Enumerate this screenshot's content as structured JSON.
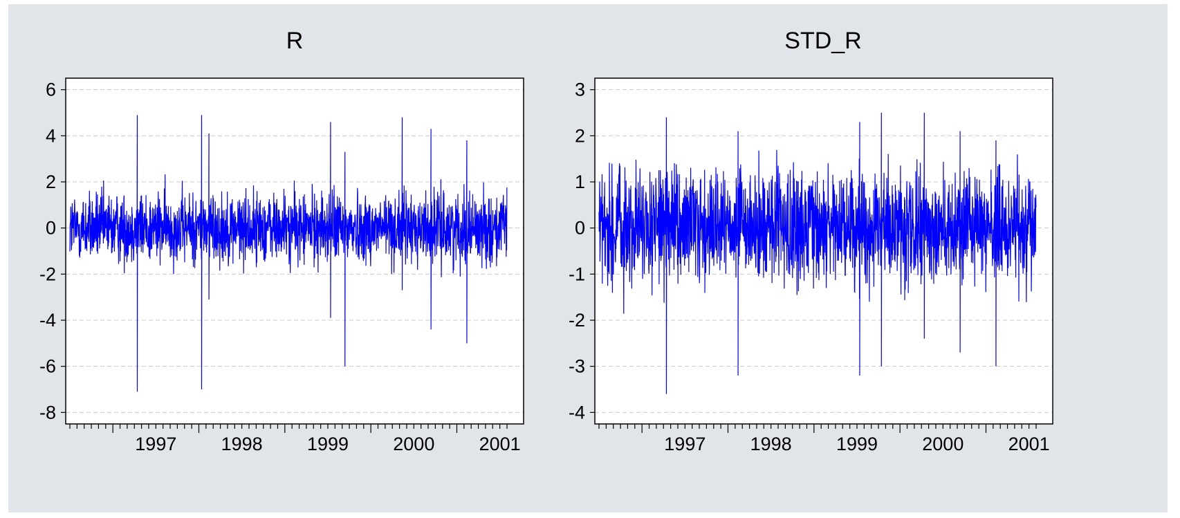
{
  "chart_data": [
    {
      "type": "line",
      "title": "R",
      "xlabel": "",
      "ylabel": "",
      "ylim": [
        -8.5,
        6.5
      ],
      "y_ticks": [
        "6",
        "4",
        "2",
        "0",
        "-2",
        "-4",
        "-6",
        "-8"
      ],
      "x_ticks": [
        "1997",
        "1998",
        "1999",
        "2000",
        "2001"
      ],
      "x_range": [
        "1996-07",
        "2001-08"
      ],
      "grid": "horizontal dashed",
      "series": [
        {
          "color": "#0000ff",
          "frequency": "daily",
          "spikes": [
            {
              "date": "1997-04",
              "high": 4.9,
              "low": -7.1
            },
            {
              "date": "1998-01",
              "high": 4.9,
              "low": -7.0
            },
            {
              "date": "1998-02",
              "high": 4.1,
              "low": -3.1
            },
            {
              "date": "1999-07",
              "high": 4.6,
              "low": -3.9
            },
            {
              "date": "1999-09",
              "high": 3.3,
              "low": -6.0
            },
            {
              "date": "2000-05",
              "high": 4.8,
              "low": -2.7
            },
            {
              "date": "2000-09",
              "high": 4.3,
              "low": -4.4
            },
            {
              "date": "2001-02",
              "high": 3.8,
              "low": -5.0
            }
          ],
          "typical_range": [
            -2.5,
            2.5
          ]
        }
      ]
    },
    {
      "type": "line",
      "title": "STD_R",
      "xlabel": "",
      "ylabel": "",
      "ylim": [
        -4.25,
        3.25
      ],
      "y_ticks": [
        "3",
        "2",
        "1",
        "0",
        "-1",
        "-2",
        "-3",
        "-4"
      ],
      "x_ticks": [
        "1997",
        "1998",
        "1999",
        "2000",
        "2001"
      ],
      "x_range": [
        "1996-07",
        "2001-08"
      ],
      "grid": "horizontal dashed",
      "series": [
        {
          "color": "#0000ff",
          "frequency": "daily",
          "spikes": [
            {
              "date": "1997-04",
              "high": 2.4,
              "low": -3.6
            },
            {
              "date": "1998-02",
              "high": 2.1,
              "low": -3.2
            },
            {
              "date": "1999-07",
              "high": 2.3,
              "low": -3.2
            },
            {
              "date": "1999-10",
              "high": 2.5,
              "low": -3.0
            },
            {
              "date": "2000-04",
              "high": 2.5,
              "low": -2.4
            },
            {
              "date": "2000-09",
              "high": 2.1,
              "low": -2.7
            },
            {
              "date": "2001-02",
              "high": 1.9,
              "low": -3.0
            }
          ],
          "typical_range": [
            -2.0,
            2.0
          ]
        }
      ]
    }
  ]
}
